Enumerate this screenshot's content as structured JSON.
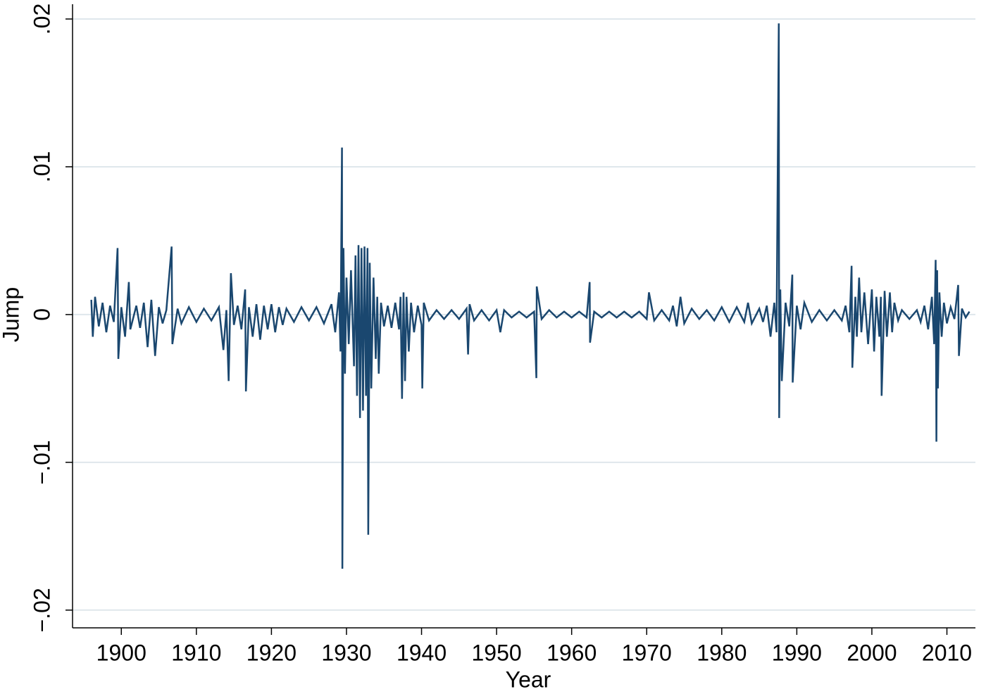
{
  "chart_data": {
    "type": "line",
    "x_label": "Year",
    "y_label": "Jump",
    "xlim": [
      1893.5,
      2013.8
    ],
    "xticks": [
      1900,
      1910,
      1920,
      1930,
      1940,
      1950,
      1960,
      1970,
      1980,
      1990,
      2000,
      2010
    ],
    "ylim": [
      -0.0212,
      0.021
    ],
    "yticks": [
      {
        "value": -0.02,
        "label": "−.02"
      },
      {
        "value": -0.01,
        "label": "−.01"
      },
      0,
      {
        "value": 0.01,
        "label": ".01"
      },
      {
        "value": 0.02,
        "label": ".02"
      }
    ],
    "grid": true,
    "series": [
      {
        "color": "#1a476f",
        "x": [
          1896.0,
          1896.2,
          1896.5,
          1897,
          1897.5,
          1898,
          1898.5,
          1899,
          1899.5,
          1899.6,
          1900,
          1900.5,
          1901,
          1901.2,
          1902,
          1902.5,
          1903,
          1903.5,
          1904,
          1904.5,
          1905,
          1905.5,
          1906,
          1906.7,
          1906.8,
          1907.5,
          1908,
          1909,
          1910,
          1911,
          1912,
          1913,
          1913.6,
          1914,
          1914.3,
          1914.6,
          1915,
          1915.5,
          1916,
          1916.5,
          1916.6,
          1917,
          1917.5,
          1918,
          1918.5,
          1919,
          1919.5,
          1920,
          1920.5,
          1921,
          1921.5,
          1922,
          1923,
          1924,
          1925,
          1926,
          1927,
          1928,
          1928.5,
          1929,
          1929.2,
          1929.4,
          1929.45,
          1929.6,
          1929.8,
          1930,
          1930.3,
          1930.6,
          1931,
          1931.2,
          1931.4,
          1931.6,
          1931.8,
          1932,
          1932.2,
          1932.4,
          1932.6,
          1932.8,
          1932.9,
          1933.1,
          1933.3,
          1933.6,
          1933.9,
          1934.1,
          1934.3,
          1934.6,
          1935,
          1935.5,
          1936,
          1936.5,
          1937,
          1937.2,
          1937.4,
          1937.6,
          1937.8,
          1938,
          1938.3,
          1938.6,
          1939,
          1939.5,
          1940,
          1940.1,
          1940.3,
          1941,
          1942,
          1943,
          1944,
          1945,
          1946,
          1946.2,
          1946.4,
          1947,
          1948,
          1949,
          1950,
          1950.5,
          1951,
          1952,
          1953,
          1954,
          1955,
          1955.3,
          1955.35,
          1956,
          1957,
          1958,
          1959,
          1960,
          1961,
          1962,
          1962.4,
          1962.45,
          1963,
          1964,
          1965,
          1966,
          1967,
          1968,
          1969,
          1970,
          1970.3,
          1971,
          1972,
          1973,
          1973.5,
          1974,
          1974.5,
          1975,
          1976,
          1977,
          1978,
          1979,
          1980,
          1981,
          1982,
          1983,
          1983.5,
          1984,
          1985,
          1985.5,
          1986,
          1986.5,
          1987,
          1987.3,
          1987.6,
          1987.65,
          1987.8,
          1988,
          1988.5,
          1989,
          1989.4,
          1989.45,
          1990,
          1990.5,
          1991,
          1992,
          1993,
          1994,
          1995,
          1996,
          1996.5,
          1997,
          1997.3,
          1997.4,
          1997.8,
          1998,
          1998.3,
          1998.6,
          1999,
          1999.5,
          2000,
          2000.3,
          2000.6,
          2001,
          2001.2,
          2001.3,
          2001.7,
          2002,
          2002.4,
          2002.7,
          2003,
          2003.5,
          2004,
          2005,
          2006,
          2006.5,
          2007,
          2007.5,
          2008,
          2008.3,
          2008.5,
          2008.6,
          2008.7,
          2008.8,
          2009,
          2009.3,
          2009.6,
          2010,
          2010.5,
          2011,
          2011.5,
          2011.6,
          2012,
          2012.5,
          2013
        ],
        "values": [
          0.001,
          -0.0015,
          0.0012,
          -0.0008,
          0.0008,
          -0.0012,
          0.0006,
          -0.0005,
          0.0045,
          -0.003,
          0.0005,
          -0.0015,
          0.0022,
          -0.001,
          0.0006,
          -0.0009,
          0.0008,
          -0.0022,
          0.001,
          -0.0028,
          0.0005,
          -0.0006,
          0.0003,
          0.0046,
          -0.002,
          0.0004,
          -0.0006,
          0.0005,
          -0.0005,
          0.0004,
          -0.0004,
          0.0005,
          -0.0024,
          0.0003,
          -0.0045,
          0.0028,
          -0.0007,
          0.0006,
          -0.001,
          0.0017,
          -0.0052,
          0.0005,
          -0.0015,
          0.0007,
          -0.0017,
          0.0006,
          -0.001,
          0.0007,
          -0.0012,
          0.0005,
          -0.0007,
          0.0004,
          -0.0005,
          0.0005,
          -0.0004,
          0.0005,
          -0.0006,
          0.0007,
          -0.0012,
          0.0015,
          -0.0025,
          0.0113,
          -0.0172,
          0.0045,
          -0.004,
          0.0025,
          -0.002,
          0.003,
          -0.0035,
          0.004,
          -0.0055,
          0.0047,
          -0.007,
          0.0045,
          -0.0065,
          0.0046,
          -0.0055,
          0.0045,
          -0.0149,
          0.0035,
          -0.005,
          0.0025,
          -0.003,
          0.0012,
          -0.004,
          0.0008,
          -0.0008,
          0.0006,
          -0.0009,
          0.0008,
          -0.001,
          0.0012,
          -0.0057,
          0.0015,
          -0.0045,
          0.0012,
          -0.0025,
          0.0008,
          -0.0012,
          0.0006,
          -0.0007,
          -0.005,
          0.0008,
          -0.0004,
          0.0003,
          -0.0003,
          0.0003,
          -0.0003,
          0.0004,
          -0.0027,
          0.0007,
          -0.0004,
          0.0003,
          -0.0004,
          0.0003,
          -0.0012,
          0.0003,
          -0.0002,
          0.0002,
          -0.0002,
          0.0002,
          -0.0043,
          0.0019,
          -0.0003,
          0.0003,
          -0.0002,
          0.0002,
          -0.0002,
          0.0002,
          -0.0002,
          0.0022,
          -0.0019,
          0.0002,
          -0.0002,
          0.0002,
          -0.0002,
          0.0002,
          -0.0002,
          0.0002,
          -0.0003,
          0.0015,
          -0.0004,
          0.0003,
          -0.0004,
          0.0006,
          -0.0008,
          0.0012,
          -0.0006,
          0.0004,
          -0.0003,
          0.0003,
          -0.0004,
          0.0005,
          -0.0005,
          0.0005,
          -0.0005,
          0.0008,
          -0.0006,
          0.0004,
          -0.0005,
          0.0006,
          -0.0015,
          0.0008,
          -0.0012,
          0.0197,
          -0.007,
          0.0017,
          -0.0045,
          0.0008,
          -0.0008,
          0.0027,
          -0.0046,
          0.0006,
          -0.001,
          0.0008,
          -0.0005,
          0.0003,
          -0.0004,
          0.0003,
          -0.0004,
          0.0006,
          -0.0012,
          0.0033,
          -0.0036,
          0.0012,
          -0.0015,
          0.0025,
          -0.0012,
          0.0015,
          -0.002,
          0.0017,
          -0.0025,
          0.0012,
          -0.0015,
          0.0012,
          -0.0055,
          0.0016,
          -0.0015,
          0.0015,
          -0.0012,
          0.0008,
          -0.0004,
          0.0003,
          -0.0003,
          0.0003,
          -0.0005,
          0.0006,
          -0.001,
          0.0012,
          -0.002,
          0.0037,
          -0.0086,
          0.003,
          -0.005,
          0.0015,
          -0.0015,
          0.0008,
          -0.0006,
          0.0005,
          -0.0003,
          0.002,
          -0.0028,
          0.0004,
          -0.0002,
          0.0002
        ]
      }
    ]
  }
}
